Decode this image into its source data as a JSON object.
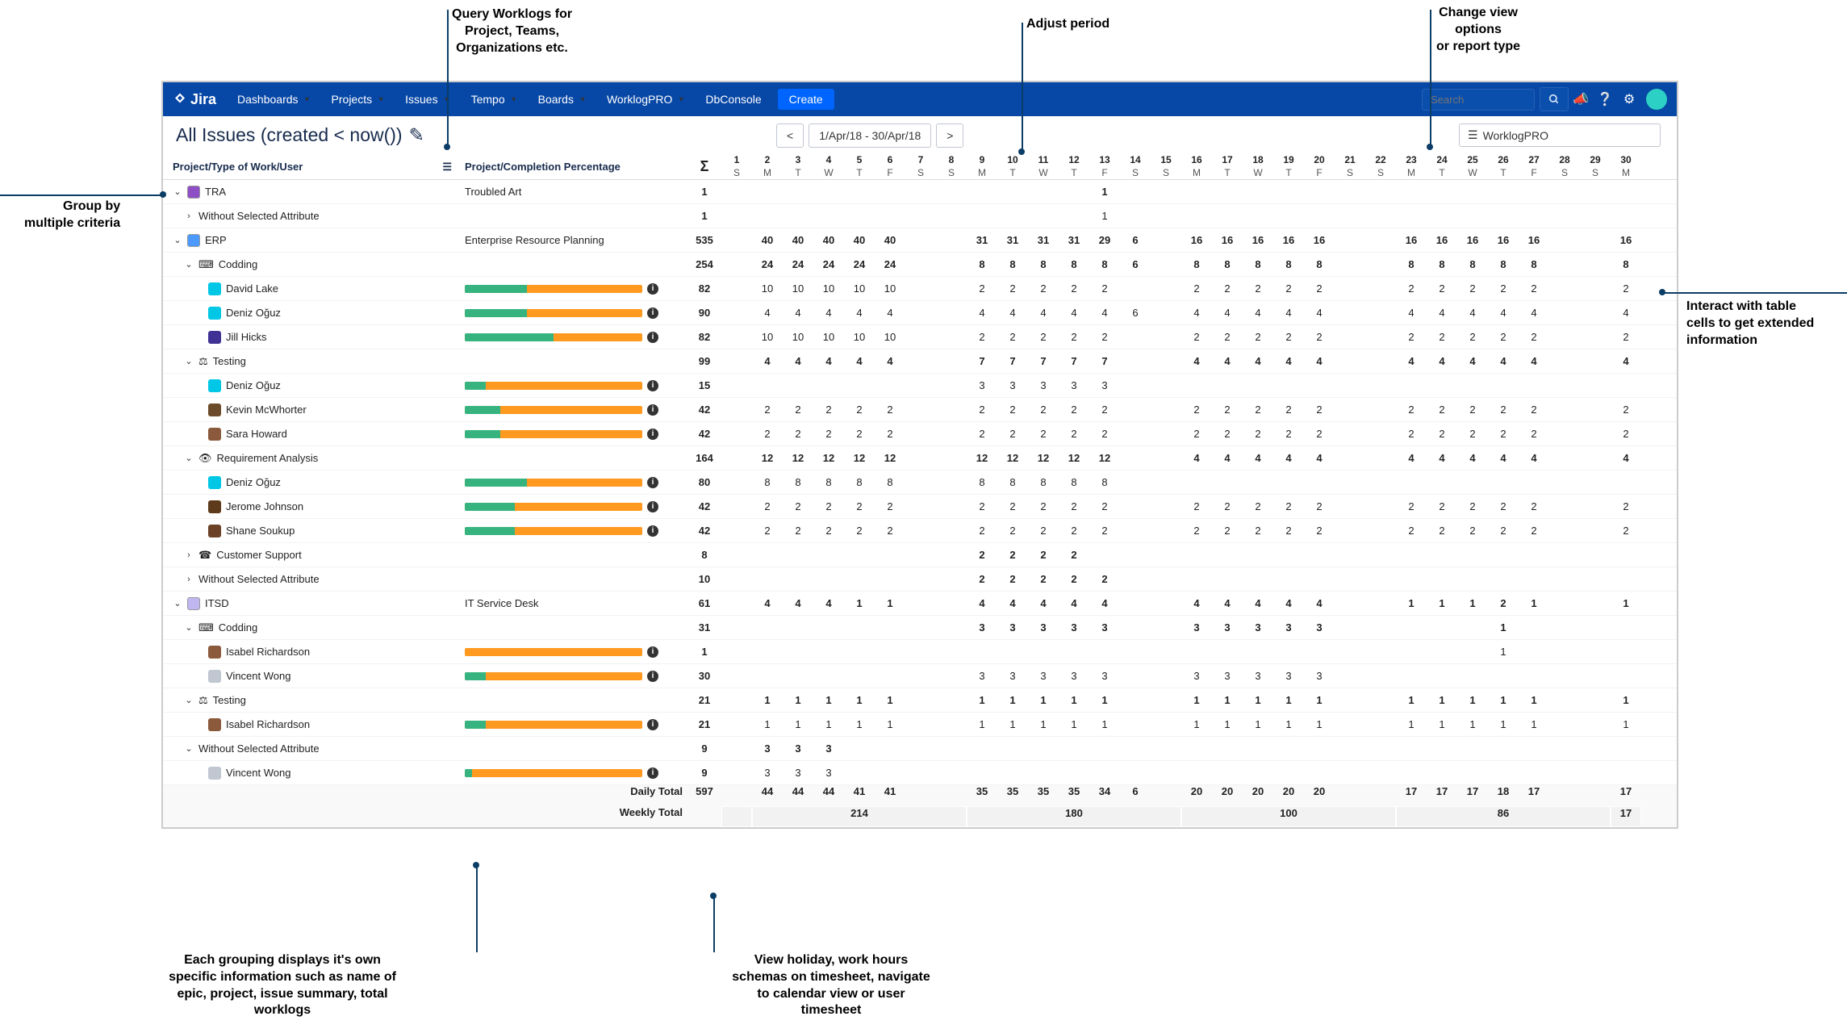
{
  "nav": {
    "logo": "Jira",
    "items": [
      "Dashboards",
      "Projects",
      "Issues",
      "Tempo",
      "Boards",
      "WorklogPRO",
      "DbConsole"
    ],
    "create": "Create",
    "search_placeholder": "Search"
  },
  "header": {
    "title": "All Issues (created < now())",
    "period_range": "1/Apr/18 - 30/Apr/18",
    "view_label": "WorklogPRO"
  },
  "columns": {
    "label": "Project/Type of Work/User",
    "completion": "Project/Completion Percentage",
    "sigma": "Σ"
  },
  "days": [
    {
      "n": "1",
      "w": "S"
    },
    {
      "n": "2",
      "w": "M"
    },
    {
      "n": "3",
      "w": "T"
    },
    {
      "n": "4",
      "w": "W"
    },
    {
      "n": "5",
      "w": "T"
    },
    {
      "n": "6",
      "w": "F"
    },
    {
      "n": "7",
      "w": "S"
    },
    {
      "n": "8",
      "w": "S"
    },
    {
      "n": "9",
      "w": "M"
    },
    {
      "n": "10",
      "w": "T"
    },
    {
      "n": "11",
      "w": "W"
    },
    {
      "n": "12",
      "w": "T"
    },
    {
      "n": "13",
      "w": "F"
    },
    {
      "n": "14",
      "w": "S"
    },
    {
      "n": "15",
      "w": "S"
    },
    {
      "n": "16",
      "w": "M"
    },
    {
      "n": "17",
      "w": "T"
    },
    {
      "n": "18",
      "w": "W"
    },
    {
      "n": "19",
      "w": "T"
    },
    {
      "n": "20",
      "w": "F"
    },
    {
      "n": "21",
      "w": "S"
    },
    {
      "n": "22",
      "w": "S"
    },
    {
      "n": "23",
      "w": "M"
    },
    {
      "n": "24",
      "w": "T"
    },
    {
      "n": "25",
      "w": "W"
    },
    {
      "n": "26",
      "w": "T"
    },
    {
      "n": "27",
      "w": "F"
    },
    {
      "n": "28",
      "w": "S"
    },
    {
      "n": "29",
      "w": "S"
    },
    {
      "n": "30",
      "w": "M"
    }
  ],
  "rows": [
    {
      "ind": 0,
      "exp": "v",
      "ic": "#8e4ec6",
      "label": "TRA",
      "comp_text": "Troubled Art",
      "sig": "1",
      "bold": true,
      "vals": {
        "13": "1"
      }
    },
    {
      "ind": 1,
      "exp": ">",
      "label": "Without Selected Attribute",
      "sig": "1",
      "vals": {
        "13": "1"
      }
    },
    {
      "ind": 0,
      "exp": "v",
      "ic": "#4c9aff",
      "label": "ERP",
      "comp_text": "Enterprise Resource Planning",
      "sig": "535",
      "bold": true,
      "vals": {
        "2": "40",
        "3": "40",
        "4": "40",
        "5": "40",
        "6": "40",
        "9": "31",
        "10": "31",
        "11": "31",
        "12": "31",
        "13": "29",
        "14": "6",
        "16": "16",
        "17": "16",
        "18": "16",
        "19": "16",
        "20": "16",
        "23": "16",
        "24": "16",
        "25": "16",
        "26": "16",
        "27": "16",
        "30": "16"
      }
    },
    {
      "ind": 1,
      "exp": "v",
      "ic": "code",
      "label": "Codding",
      "sig": "254",
      "bold": true,
      "vals": {
        "2": "24",
        "3": "24",
        "4": "24",
        "5": "24",
        "6": "24",
        "9": "8",
        "10": "8",
        "11": "8",
        "12": "8",
        "13": "8",
        "14": "6",
        "16": "8",
        "17": "8",
        "18": "8",
        "19": "8",
        "20": "8",
        "23": "8",
        "24": "8",
        "25": "8",
        "26": "8",
        "27": "8",
        "30": "8"
      }
    },
    {
      "ind": 2,
      "u": "#00c7e6",
      "label": "David Lake",
      "bar": 35,
      "sig": "82",
      "vals": {
        "2": "10",
        "3": "10",
        "4": "10",
        "5": "10",
        "6": "10",
        "9": "2",
        "10": "2",
        "11": "2",
        "12": "2",
        "13": "2",
        "16": "2",
        "17": "2",
        "18": "2",
        "19": "2",
        "20": "2",
        "23": "2",
        "24": "2",
        "25": "2",
        "26": "2",
        "27": "2",
        "30": "2"
      }
    },
    {
      "ind": 2,
      "u": "#00c7e6",
      "label": "Deniz Oğuz",
      "bar": 35,
      "sig": "90",
      "vals": {
        "2": "4",
        "3": "4",
        "4": "4",
        "5": "4",
        "6": "4",
        "9": "4",
        "10": "4",
        "11": "4",
        "12": "4",
        "13": "4",
        "14": "6",
        "16": "4",
        "17": "4",
        "18": "4",
        "19": "4",
        "20": "4",
        "23": "4",
        "24": "4",
        "25": "4",
        "26": "4",
        "27": "4",
        "30": "4"
      }
    },
    {
      "ind": 2,
      "u": "#403294",
      "label": "Jill Hicks",
      "bar": 50,
      "sig": "82",
      "vals": {
        "2": "10",
        "3": "10",
        "4": "10",
        "5": "10",
        "6": "10",
        "9": "2",
        "10": "2",
        "11": "2",
        "12": "2",
        "13": "2",
        "16": "2",
        "17": "2",
        "18": "2",
        "19": "2",
        "20": "2",
        "23": "2",
        "24": "2",
        "25": "2",
        "26": "2",
        "27": "2",
        "30": "2"
      }
    },
    {
      "ind": 1,
      "exp": "v",
      "ic": "scale",
      "label": "Testing",
      "sig": "99",
      "bold": true,
      "vals": {
        "2": "4",
        "3": "4",
        "4": "4",
        "5": "4",
        "6": "4",
        "9": "7",
        "10": "7",
        "11": "7",
        "12": "7",
        "13": "7",
        "16": "4",
        "17": "4",
        "18": "4",
        "19": "4",
        "20": "4",
        "23": "4",
        "24": "4",
        "25": "4",
        "26": "4",
        "27": "4",
        "30": "4"
      }
    },
    {
      "ind": 2,
      "u": "#00c7e6",
      "label": "Deniz Oğuz",
      "bar": 12,
      "sig": "15",
      "vals": {
        "9": "3",
        "10": "3",
        "11": "3",
        "12": "3",
        "13": "3"
      }
    },
    {
      "ind": 2,
      "u": "#6b4b2a",
      "label": "Kevin McWhorter",
      "bar": 20,
      "sig": "42",
      "vals": {
        "2": "2",
        "3": "2",
        "4": "2",
        "5": "2",
        "6": "2",
        "9": "2",
        "10": "2",
        "11": "2",
        "12": "2",
        "13": "2",
        "16": "2",
        "17": "2",
        "18": "2",
        "19": "2",
        "20": "2",
        "23": "2",
        "24": "2",
        "25": "2",
        "26": "2",
        "27": "2",
        "30": "2"
      }
    },
    {
      "ind": 2,
      "u": "#8b5a3c",
      "label": "Sara Howard",
      "bar": 20,
      "sig": "42",
      "vals": {
        "2": "2",
        "3": "2",
        "4": "2",
        "5": "2",
        "6": "2",
        "9": "2",
        "10": "2",
        "11": "2",
        "12": "2",
        "13": "2",
        "16": "2",
        "17": "2",
        "18": "2",
        "19": "2",
        "20": "2",
        "23": "2",
        "24": "2",
        "25": "2",
        "26": "2",
        "27": "2",
        "30": "2"
      }
    },
    {
      "ind": 1,
      "exp": "v",
      "ic": "eye",
      "label": "Requirement Analysis",
      "sig": "164",
      "bold": true,
      "vals": {
        "2": "12",
        "3": "12",
        "4": "12",
        "5": "12",
        "6": "12",
        "9": "12",
        "10": "12",
        "11": "12",
        "12": "12",
        "13": "12",
        "16": "4",
        "17": "4",
        "18": "4",
        "19": "4",
        "20": "4",
        "23": "4",
        "24": "4",
        "25": "4",
        "26": "4",
        "27": "4",
        "30": "4"
      }
    },
    {
      "ind": 2,
      "u": "#00c7e6",
      "label": "Deniz Oğuz",
      "bar": 35,
      "sig": "80",
      "vals": {
        "2": "8",
        "3": "8",
        "4": "8",
        "5": "8",
        "6": "8",
        "9": "8",
        "10": "8",
        "11": "8",
        "12": "8",
        "13": "8"
      }
    },
    {
      "ind": 2,
      "u": "#5d3a1a",
      "label": "Jerome Johnson",
      "bar": 28,
      "sig": "42",
      "vals": {
        "2": "2",
        "3": "2",
        "4": "2",
        "5": "2",
        "6": "2",
        "9": "2",
        "10": "2",
        "11": "2",
        "12": "2",
        "13": "2",
        "16": "2",
        "17": "2",
        "18": "2",
        "19": "2",
        "20": "2",
        "23": "2",
        "24": "2",
        "25": "2",
        "26": "2",
        "27": "2",
        "30": "2"
      }
    },
    {
      "ind": 2,
      "u": "#6b4226",
      "label": "Shane Soukup",
      "bar": 28,
      "sig": "42",
      "vals": {
        "2": "2",
        "3": "2",
        "4": "2",
        "5": "2",
        "6": "2",
        "9": "2",
        "10": "2",
        "11": "2",
        "12": "2",
        "13": "2",
        "16": "2",
        "17": "2",
        "18": "2",
        "19": "2",
        "20": "2",
        "23": "2",
        "24": "2",
        "25": "2",
        "26": "2",
        "27": "2",
        "30": "2"
      }
    },
    {
      "ind": 1,
      "exp": ">",
      "ic": "support",
      "label": "Customer Support",
      "sig": "8",
      "bold": true,
      "vals": {
        "9": "2",
        "10": "2",
        "11": "2",
        "12": "2"
      }
    },
    {
      "ind": 1,
      "exp": ">",
      "label": "Without Selected Attribute",
      "sig": "10",
      "bold": true,
      "vals": {
        "9": "2",
        "10": "2",
        "11": "2",
        "12": "2",
        "13": "2"
      }
    },
    {
      "ind": 0,
      "exp": "v",
      "ic": "#c0b6f2",
      "label": "ITSD",
      "comp_text": "IT Service Desk",
      "sig": "61",
      "bold": true,
      "vals": {
        "2": "4",
        "3": "4",
        "4": "4",
        "5": "1",
        "6": "1",
        "9": "4",
        "10": "4",
        "11": "4",
        "12": "4",
        "13": "4",
        "16": "4",
        "17": "4",
        "18": "4",
        "19": "4",
        "20": "4",
        "23": "1",
        "24": "1",
        "25": "1",
        "26": "2",
        "27": "1",
        "30": "1"
      }
    },
    {
      "ind": 1,
      "exp": "v",
      "ic": "code",
      "label": "Codding",
      "sig": "31",
      "bold": true,
      "vals": {
        "9": "3",
        "10": "3",
        "11": "3",
        "12": "3",
        "13": "3",
        "16": "3",
        "17": "3",
        "18": "3",
        "19": "3",
        "20": "3",
        "26": "1"
      }
    },
    {
      "ind": 2,
      "u": "#8b5a3c",
      "label": "Isabel Richardson",
      "bar": 0,
      "sig": "1",
      "vals": {
        "26": "1"
      }
    },
    {
      "ind": 2,
      "u": "#c1c7d0",
      "label": "Vincent Wong",
      "bar": 12,
      "sig": "30",
      "vals": {
        "9": "3",
        "10": "3",
        "11": "3",
        "12": "3",
        "13": "3",
        "16": "3",
        "17": "3",
        "18": "3",
        "19": "3",
        "20": "3"
      }
    },
    {
      "ind": 1,
      "exp": "v",
      "ic": "scale",
      "label": "Testing",
      "sig": "21",
      "bold": true,
      "vals": {
        "2": "1",
        "3": "1",
        "4": "1",
        "5": "1",
        "6": "1",
        "9": "1",
        "10": "1",
        "11": "1",
        "12": "1",
        "13": "1",
        "16": "1",
        "17": "1",
        "18": "1",
        "19": "1",
        "20": "1",
        "23": "1",
        "24": "1",
        "25": "1",
        "26": "1",
        "27": "1",
        "30": "1"
      }
    },
    {
      "ind": 2,
      "u": "#8b5a3c",
      "label": "Isabel Richardson",
      "bar": 12,
      "sig": "21",
      "vals": {
        "2": "1",
        "3": "1",
        "4": "1",
        "5": "1",
        "6": "1",
        "9": "1",
        "10": "1",
        "11": "1",
        "12": "1",
        "13": "1",
        "16": "1",
        "17": "1",
        "18": "1",
        "19": "1",
        "20": "1",
        "23": "1",
        "24": "1",
        "25": "1",
        "26": "1",
        "27": "1",
        "30": "1"
      }
    },
    {
      "ind": 1,
      "exp": "v",
      "label": "Without Selected Attribute",
      "sig": "9",
      "bold": true,
      "vals": {
        "2": "3",
        "3": "3",
        "4": "3"
      }
    },
    {
      "ind": 2,
      "u": "#c1c7d0",
      "label": "Vincent Wong",
      "bar": 4,
      "sig": "9",
      "vals": {
        "2": "3",
        "3": "3",
        "4": "3"
      }
    }
  ],
  "daily_total": {
    "label": "Daily Total",
    "sig": "597",
    "vals": {
      "2": "44",
      "3": "44",
      "4": "44",
      "5": "41",
      "6": "41",
      "9": "35",
      "10": "35",
      "11": "35",
      "12": "35",
      "13": "34",
      "14": "6",
      "16": "20",
      "17": "20",
      "18": "20",
      "19": "20",
      "20": "20",
      "23": "17",
      "24": "17",
      "25": "17",
      "26": "18",
      "27": "17",
      "30": "17"
    }
  },
  "weekly_total": {
    "label": "Weekly Total",
    "groups": [
      {
        "span": 1,
        "v": ""
      },
      {
        "span": 7,
        "v": "214"
      },
      {
        "span": 7,
        "v": "180"
      },
      {
        "span": 7,
        "v": "100"
      },
      {
        "span": 7,
        "v": "86"
      },
      {
        "span": 1,
        "v": "17"
      }
    ]
  },
  "annotations": {
    "a1": "Group by\nmultiple criteria",
    "a2": "Query Worklogs for\nProject, Teams,\nOrganizations etc.",
    "a3": "Adjust period",
    "a4": "Change view\noptions\nor report type",
    "a5": "Interact with table\ncells to get extended\ninformation",
    "a6": "Each grouping displays it's own\nspecific information such as name of\nepic, project, issue summary, total\nworklogs",
    "a7": "View holiday, work hours\nschemas on timesheet, navigate\nto calendar view or user\ntimesheet"
  },
  "colors": {
    "nav_bg": "#0747a6",
    "create_bg": "#0065ff",
    "bar_green": "#36b37e",
    "bar_orange": "#ff991f",
    "anno": "#0b3d66"
  }
}
